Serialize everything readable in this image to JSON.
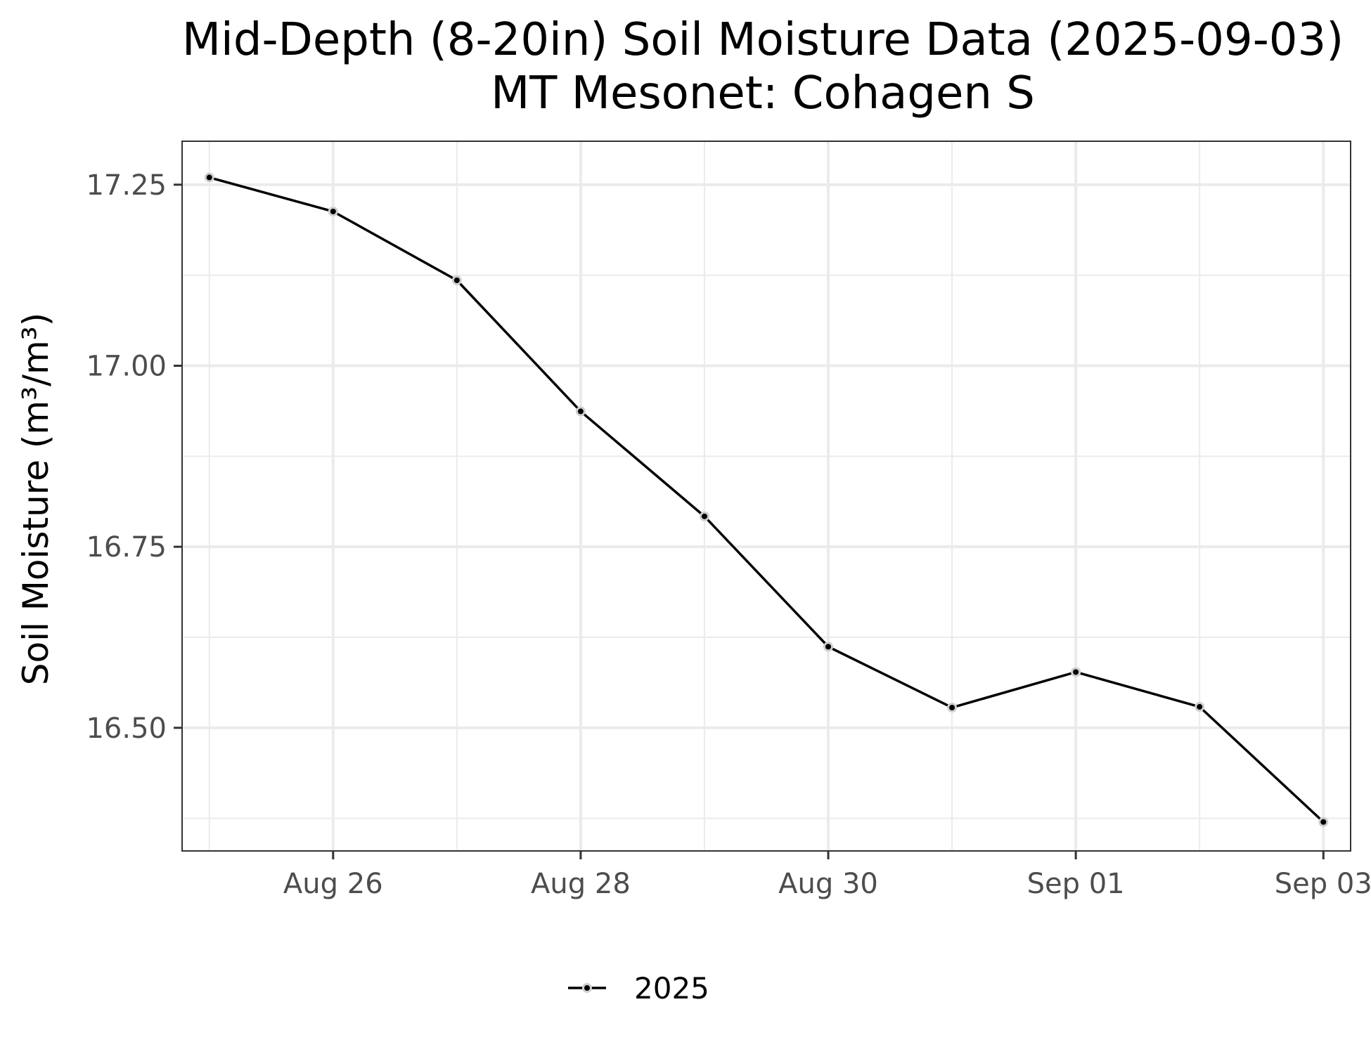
{
  "chart_data": {
    "type": "line",
    "title": "Mid-Depth (8-20in) Soil Moisture Data (2025-09-03)",
    "subtitle": "MT Mesonet: Cohagen S",
    "xlabel": "",
    "ylabel": "Soil Moisture (m³/m³)",
    "x": [
      "2025-08-25",
      "2025-08-26",
      "2025-08-27",
      "2025-08-28",
      "2025-08-29",
      "2025-08-30",
      "2025-08-31",
      "2025-09-01",
      "2025-09-02",
      "2025-09-03"
    ],
    "x_ticks": [
      "Aug 26",
      "Aug 28",
      "Aug 30",
      "Sep 01",
      "Sep 03"
    ],
    "y_ticks": [
      "16.50",
      "16.75",
      "17.00",
      "17.25"
    ],
    "ylim": [
      16.33,
      17.31
    ],
    "grid": true,
    "legend_position": "bottom",
    "series": [
      {
        "name": "2025",
        "color": "#000000",
        "values": [
          17.26,
          17.213,
          17.118,
          16.937,
          16.792,
          16.612,
          16.528,
          16.577,
          16.529,
          16.37
        ]
      }
    ]
  }
}
